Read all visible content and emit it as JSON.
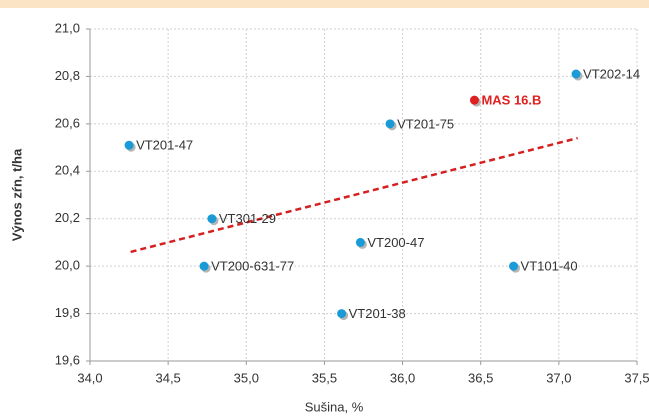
{
  "chart_data": {
    "type": "scatter",
    "x_label": "Sušina, %",
    "y_label": "Výnos zŕn, t/ha",
    "xlim": [
      34.0,
      37.5
    ],
    "ylim": [
      19.6,
      21.0
    ],
    "xticks": [
      {
        "value": 34.0,
        "label": "34,0"
      },
      {
        "value": 34.5,
        "label": "34,5"
      },
      {
        "value": 35.0,
        "label": "35,0"
      },
      {
        "value": 35.5,
        "label": "35,5"
      },
      {
        "value": 36.0,
        "label": "36,0"
      },
      {
        "value": 36.5,
        "label": "36,5"
      },
      {
        "value": 37.0,
        "label": "37,0"
      },
      {
        "value": 37.5,
        "label": "37,5"
      }
    ],
    "yticks": [
      {
        "value": 19.6,
        "label": "19,6"
      },
      {
        "value": 19.8,
        "label": "19,8"
      },
      {
        "value": 20.0,
        "label": "20,0"
      },
      {
        "value": 20.2,
        "label": "20,2"
      },
      {
        "value": 20.4,
        "label": "20,4"
      },
      {
        "value": 20.6,
        "label": "20,6"
      },
      {
        "value": 20.8,
        "label": "20,8"
      },
      {
        "value": 21.0,
        "label": "21,0"
      }
    ],
    "grid": true,
    "points": [
      {
        "label": "VT201-47",
        "x": 34.25,
        "y": 20.51,
        "color": "#1a9ad6"
      },
      {
        "label": "VT301-29",
        "x": 34.78,
        "y": 20.2,
        "color": "#1a9ad6"
      },
      {
        "label": "VT200-631-77",
        "x": 34.73,
        "y": 20.0,
        "color": "#1a9ad6"
      },
      {
        "label": "VT201-38",
        "x": 35.61,
        "y": 19.8,
        "color": "#1a9ad6"
      },
      {
        "label": "VT200-47",
        "x": 35.73,
        "y": 20.1,
        "color": "#1a9ad6"
      },
      {
        "label": "VT201-75",
        "x": 35.92,
        "y": 20.6,
        "color": "#1a9ad6"
      },
      {
        "label": "MAS 16.B",
        "x": 36.46,
        "y": 20.7,
        "color": "#e02020",
        "highlight": true
      },
      {
        "label": "VT101-40",
        "x": 36.71,
        "y": 20.0,
        "color": "#1a9ad6"
      },
      {
        "label": "VT202-14",
        "x": 37.11,
        "y": 20.81,
        "color": "#1a9ad6"
      }
    ],
    "trendline": {
      "x": [
        34.26,
        37.12
      ],
      "y": [
        20.06,
        20.54
      ],
      "color": "#d62020"
    }
  }
}
